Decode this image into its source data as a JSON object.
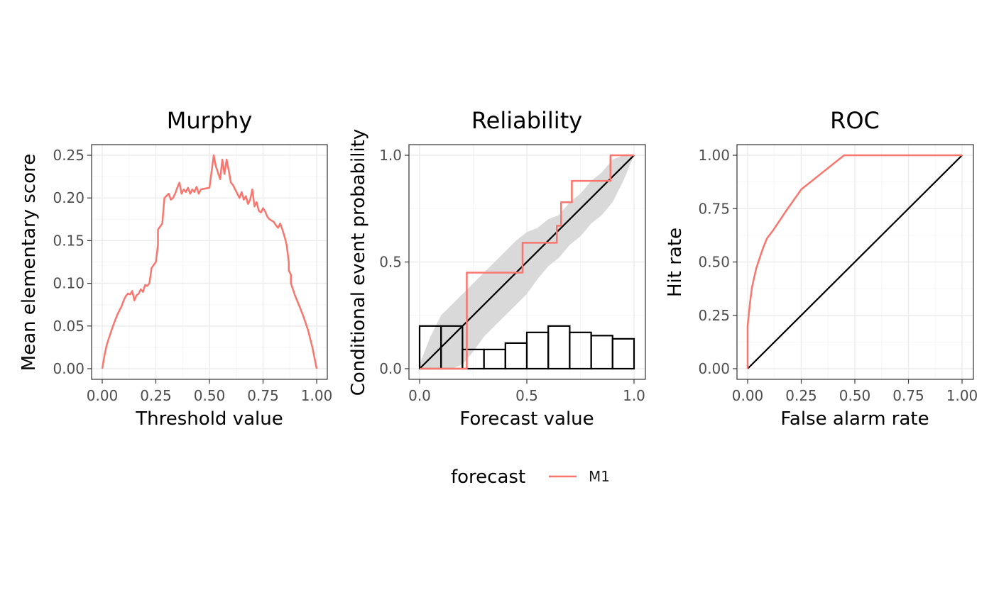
{
  "colors": {
    "series": "#F8766D",
    "diagonal": "#000000",
    "band": "#d9d9d9",
    "panel_border": "#333333",
    "grid_major": "#ebebeb",
    "grid_minor": "#f5f5f5"
  },
  "legend": {
    "title": "forecast",
    "items": [
      {
        "label": "M1"
      }
    ]
  },
  "chart_data": [
    {
      "type": "line",
      "title": "Murphy",
      "xlabel": "Threshold value",
      "ylabel": "Mean elementary score",
      "xlim": [
        0,
        1
      ],
      "ylim": [
        0,
        0.25
      ],
      "xticks": [
        0,
        0.25,
        0.5,
        0.75,
        1
      ],
      "xtick_labels": [
        "0.00",
        "0.25",
        "0.50",
        "0.75",
        "1.00"
      ],
      "yticks": [
        0,
        0.05,
        0.1,
        0.15,
        0.2,
        0.25
      ],
      "ytick_labels": [
        "0.00",
        "0.05",
        "0.10",
        "0.15",
        "0.20",
        "0.25"
      ],
      "grid": true,
      "series": [
        {
          "name": "M1",
          "x": [
            0.0,
            0.01,
            0.02,
            0.03,
            0.05,
            0.07,
            0.09,
            0.1,
            0.11,
            0.12,
            0.13,
            0.14,
            0.15,
            0.16,
            0.17,
            0.18,
            0.19,
            0.2,
            0.21,
            0.22,
            0.23,
            0.25,
            0.26,
            0.26,
            0.28,
            0.29,
            0.29,
            0.31,
            0.32,
            0.33,
            0.34,
            0.35,
            0.36,
            0.37,
            0.38,
            0.39,
            0.4,
            0.41,
            0.42,
            0.43,
            0.44,
            0.45,
            0.46,
            0.5,
            0.52,
            0.53,
            0.55,
            0.56,
            0.57,
            0.58,
            0.59,
            0.6,
            0.61,
            0.62,
            0.63,
            0.64,
            0.65,
            0.66,
            0.67,
            0.68,
            0.69,
            0.7,
            0.71,
            0.72,
            0.73,
            0.74,
            0.75,
            0.76,
            0.77,
            0.78,
            0.8,
            0.81,
            0.82,
            0.83,
            0.84,
            0.85,
            0.86,
            0.87,
            0.87,
            0.88,
            0.88,
            0.9,
            0.92,
            0.94,
            0.96,
            0.98,
            1.0
          ],
          "y": [
            0.0,
            0.015,
            0.027,
            0.035,
            0.05,
            0.063,
            0.073,
            0.08,
            0.085,
            0.088,
            0.087,
            0.091,
            0.08,
            0.086,
            0.088,
            0.093,
            0.09,
            0.098,
            0.097,
            0.1,
            0.118,
            0.125,
            0.145,
            0.163,
            0.17,
            0.2,
            0.2,
            0.205,
            0.198,
            0.2,
            0.205,
            0.212,
            0.218,
            0.205,
            0.21,
            0.207,
            0.212,
            0.205,
            0.21,
            0.207,
            0.213,
            0.205,
            0.21,
            0.212,
            0.25,
            0.237,
            0.222,
            0.245,
            0.228,
            0.245,
            0.232,
            0.218,
            0.215,
            0.21,
            0.205,
            0.2,
            0.207,
            0.198,
            0.202,
            0.193,
            0.198,
            0.21,
            0.19,
            0.195,
            0.185,
            0.183,
            0.188,
            0.184,
            0.178,
            0.175,
            0.172,
            0.168,
            0.165,
            0.17,
            0.163,
            0.155,
            0.145,
            0.125,
            0.115,
            0.11,
            0.1,
            0.085,
            0.073,
            0.06,
            0.045,
            0.025,
            0.0
          ]
        }
      ]
    },
    {
      "type": "line",
      "title": "Reliability",
      "xlabel": "Forecast value",
      "ylabel": "Conditional event probability",
      "xlim": [
        0,
        1
      ],
      "ylim": [
        0,
        1
      ],
      "xticks": [
        0,
        0.5,
        1
      ],
      "xtick_labels": [
        "0.0",
        "0.5",
        "1.0"
      ],
      "yticks": [
        0,
        0.5,
        1
      ],
      "ytick_labels": [
        "0.0",
        "0.5",
        "1.0"
      ],
      "grid": true,
      "band": {
        "x": [
          0,
          0.05,
          0.1,
          0.15,
          0.2,
          0.25,
          0.3,
          0.35,
          0.4,
          0.45,
          0.5,
          0.55,
          0.6,
          0.65,
          0.7,
          0.75,
          0.8,
          0.85,
          0.9,
          0.95,
          1.0
        ],
        "lower": [
          0,
          0,
          0,
          0,
          0.02,
          0.08,
          0.15,
          0.2,
          0.25,
          0.3,
          0.35,
          0.42,
          0.48,
          0.52,
          0.58,
          0.62,
          0.68,
          0.72,
          0.78,
          0.88,
          1.0
        ],
        "upper": [
          0.02,
          0.15,
          0.25,
          0.3,
          0.35,
          0.4,
          0.45,
          0.5,
          0.55,
          0.6,
          0.64,
          0.66,
          0.7,
          0.72,
          0.78,
          0.82,
          0.88,
          0.92,
          0.98,
          1.0,
          1.0
        ]
      },
      "diagonal": {
        "x": [
          0,
          1
        ],
        "y": [
          0,
          1
        ]
      },
      "histogram": {
        "bins": [
          [
            0.0,
            0.1
          ],
          [
            0.1,
            0.2
          ],
          [
            0.2,
            0.3
          ],
          [
            0.3,
            0.4
          ],
          [
            0.4,
            0.5
          ],
          [
            0.5,
            0.6
          ],
          [
            0.6,
            0.7
          ],
          [
            0.7,
            0.8
          ],
          [
            0.8,
            0.9
          ],
          [
            0.9,
            1.0
          ]
        ],
        "heights": [
          0.2,
          0.2,
          0.09,
          0.09,
          0.12,
          0.17,
          0.2,
          0.17,
          0.155,
          0.14
        ]
      },
      "series": [
        {
          "name": "M1",
          "step": true,
          "x": [
            0.0,
            0.22,
            0.22,
            0.48,
            0.48,
            0.64,
            0.64,
            0.66,
            0.66,
            0.71,
            0.71,
            0.89,
            0.89,
            1.0
          ],
          "y": [
            0.0,
            0.0,
            0.45,
            0.45,
            0.59,
            0.59,
            0.67,
            0.67,
            0.78,
            0.78,
            0.88,
            0.88,
            1.0,
            1.0
          ]
        }
      ]
    },
    {
      "type": "line",
      "title": "ROC",
      "xlabel": "False alarm rate",
      "ylabel": "Hit rate",
      "xlim": [
        0,
        1
      ],
      "ylim": [
        0,
        1
      ],
      "xticks": [
        0,
        0.25,
        0.5,
        0.75,
        1
      ],
      "xtick_labels": [
        "0.00",
        "0.25",
        "0.50",
        "0.75",
        "1.00"
      ],
      "yticks": [
        0,
        0.25,
        0.5,
        0.75,
        1
      ],
      "ytick_labels": [
        "0.00",
        "0.25",
        "0.50",
        "0.75",
        "1.00"
      ],
      "grid": true,
      "diagonal": {
        "x": [
          0,
          1
        ],
        "y": [
          0,
          1
        ]
      },
      "series": [
        {
          "name": "M1",
          "x": [
            0.0,
            0.0,
            0.01,
            0.02,
            0.04,
            0.07,
            0.09,
            0.12,
            0.18,
            0.25,
            0.35,
            0.45,
            0.6,
            1.0
          ],
          "y": [
            0.0,
            0.2,
            0.3,
            0.38,
            0.47,
            0.56,
            0.61,
            0.65,
            0.74,
            0.84,
            0.92,
            1.0,
            1.0,
            1.0
          ]
        }
      ]
    }
  ]
}
